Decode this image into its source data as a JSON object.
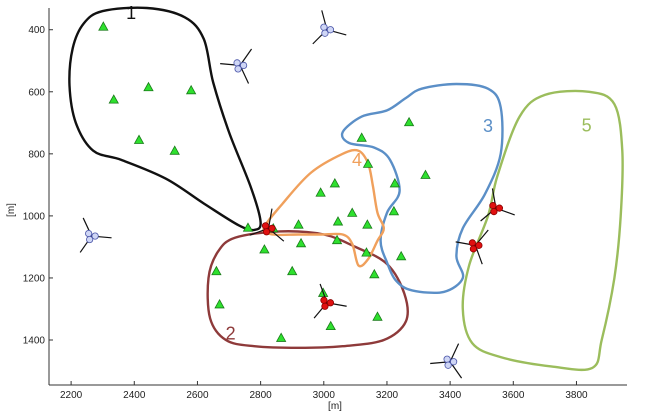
{
  "chart_data": {
    "type": "scatter",
    "title": "",
    "xlabel": "[m]",
    "ylabel": "[m]",
    "xlim": [
      2130,
      3960
    ],
    "ylim": [
      1545,
      330
    ],
    "y_inverted": true,
    "grid": false,
    "x_ticks": [
      2200,
      2400,
      2600,
      2800,
      3000,
      3200,
      3400,
      3600,
      3800
    ],
    "y_ticks": [
      400,
      600,
      800,
      1000,
      1200,
      1400
    ],
    "x_tick_labels": [
      "2200",
      "2400",
      "2600",
      "2800",
      "3000",
      "3200",
      "3400",
      "3600",
      "3800"
    ],
    "y_tick_labels": [
      "400",
      "600",
      "800",
      "1000",
      "1200",
      "1400"
    ],
    "sensors": [
      {
        "x": 2302,
        "y": 390
      },
      {
        "x": 2335,
        "y": 625
      },
      {
        "x": 2445,
        "y": 585
      },
      {
        "x": 2580,
        "y": 595
      },
      {
        "x": 2415,
        "y": 755
      },
      {
        "x": 2528,
        "y": 790
      },
      {
        "x": 2760,
        "y": 1038
      },
      {
        "x": 2812,
        "y": 1108
      },
      {
        "x": 2840,
        "y": 1040
      },
      {
        "x": 2920,
        "y": 1028
      },
      {
        "x": 2990,
        "y": 925
      },
      {
        "x": 3035,
        "y": 895
      },
      {
        "x": 3045,
        "y": 1018
      },
      {
        "x": 3042,
        "y": 1078
      },
      {
        "x": 3090,
        "y": 990
      },
      {
        "x": 3120,
        "y": 748
      },
      {
        "x": 3140,
        "y": 832
      },
      {
        "x": 3138,
        "y": 1028
      },
      {
        "x": 3135,
        "y": 1118
      },
      {
        "x": 3160,
        "y": 1188
      },
      {
        "x": 3225,
        "y": 895
      },
      {
        "x": 3222,
        "y": 985
      },
      {
        "x": 3270,
        "y": 698
      },
      {
        "x": 3245,
        "y": 1130
      },
      {
        "x": 3322,
        "y": 868
      },
      {
        "x": 2660,
        "y": 1178
      },
      {
        "x": 2670,
        "y": 1285
      },
      {
        "x": 2900,
        "y": 1178
      },
      {
        "x": 2928,
        "y": 1088
      },
      {
        "x": 2998,
        "y": 1248
      },
      {
        "x": 3022,
        "y": 1355
      },
      {
        "x": 2865,
        "y": 1393
      },
      {
        "x": 3170,
        "y": 1325
      }
    ],
    "wind_turbines": [
      {
        "x": 3010,
        "y": 400,
        "active": false,
        "blade_angle": 15
      },
      {
        "x": 2735,
        "y": 515,
        "active": false,
        "blade_angle": 65
      },
      {
        "x": 2265,
        "y": 1065,
        "active": false,
        "blade_angle": 5
      },
      {
        "x": 3400,
        "y": 1470,
        "active": false,
        "blade_angle": 55
      },
      {
        "x": 2825,
        "y": 1040,
        "active": true,
        "blade_angle": 40
      },
      {
        "x": 3010,
        "y": 1280,
        "active": true,
        "blade_angle": 10
      },
      {
        "x": 3545,
        "y": 975,
        "active": true,
        "blade_angle": 20
      },
      {
        "x": 3480,
        "y": 1095,
        "active": true,
        "blade_angle": 70
      }
    ],
    "clusters": [
      {
        "label": "1",
        "color": "#111111",
        "label_at": [
          2390,
          365
        ],
        "boundary": [
          [
            2240,
            380
          ],
          [
            2300,
            340
          ],
          [
            2440,
            330
          ],
          [
            2560,
            360
          ],
          [
            2620,
            430
          ],
          [
            2650,
            570
          ],
          [
            2700,
            730
          ],
          [
            2770,
            910
          ],
          [
            2800,
            1020
          ],
          [
            2780,
            1045
          ],
          [
            2730,
            1030
          ],
          [
            2620,
            960
          ],
          [
            2500,
            880
          ],
          [
            2360,
            820
          ],
          [
            2270,
            790
          ],
          [
            2215,
            700
          ],
          [
            2195,
            580
          ],
          [
            2205,
            460
          ]
        ]
      },
      {
        "label": "2",
        "color": "#8e3a3a",
        "label_at": [
          2705,
          1398
        ],
        "boundary": [
          [
            2720,
            1070
          ],
          [
            2860,
            1050
          ],
          [
            3000,
            1060
          ],
          [
            3100,
            1100
          ],
          [
            3200,
            1155
          ],
          [
            3255,
            1250
          ],
          [
            3260,
            1340
          ],
          [
            3190,
            1400
          ],
          [
            3060,
            1420
          ],
          [
            2920,
            1425
          ],
          [
            2780,
            1420
          ],
          [
            2690,
            1400
          ],
          [
            2640,
            1330
          ],
          [
            2635,
            1200
          ],
          [
            2665,
            1115
          ]
        ]
      },
      {
        "label": "3",
        "color": "#5b8fc7",
        "label_at": [
          3520,
          730
        ],
        "boundary": [
          [
            3060,
            730
          ],
          [
            3120,
            680
          ],
          [
            3200,
            660
          ],
          [
            3260,
            620
          ],
          [
            3310,
            590
          ],
          [
            3420,
            575
          ],
          [
            3520,
            590
          ],
          [
            3560,
            650
          ],
          [
            3560,
            800
          ],
          [
            3510,
            930
          ],
          [
            3440,
            1040
          ],
          [
            3420,
            1130
          ],
          [
            3440,
            1200
          ],
          [
            3380,
            1245
          ],
          [
            3280,
            1240
          ],
          [
            3230,
            1210
          ],
          [
            3200,
            1150
          ],
          [
            3180,
            1080
          ],
          [
            3200,
            990
          ],
          [
            3240,
            920
          ],
          [
            3210,
            820
          ],
          [
            3160,
            780
          ],
          [
            3080,
            765
          ]
        ]
      },
      {
        "label": "4",
        "color": "#f0a05c",
        "label_at": [
          3105,
          840
        ],
        "boundary": [
          [
            2810,
            1040
          ],
          [
            2870,
            960
          ],
          [
            2960,
            860
          ],
          [
            3060,
            800
          ],
          [
            3110,
            790
          ],
          [
            3140,
            830
          ],
          [
            3155,
            900
          ],
          [
            3170,
            990
          ],
          [
            3190,
            1040
          ],
          [
            3170,
            1080
          ],
          [
            3140,
            1140
          ],
          [
            3110,
            1160
          ],
          [
            3090,
            1090
          ],
          [
            3060,
            1060
          ],
          [
            2990,
            1060
          ],
          [
            2920,
            1060
          ],
          [
            2840,
            1060
          ]
        ]
      },
      {
        "label": "5",
        "color": "#9bbd5c",
        "label_at": [
          3832,
          728
        ],
        "boundary": [
          [
            3620,
            680
          ],
          [
            3700,
            610
          ],
          [
            3840,
            600
          ],
          [
            3920,
            640
          ],
          [
            3945,
            790
          ],
          [
            3940,
            1000
          ],
          [
            3920,
            1200
          ],
          [
            3880,
            1400
          ],
          [
            3850,
            1490
          ],
          [
            3720,
            1485
          ],
          [
            3560,
            1455
          ],
          [
            3470,
            1410
          ],
          [
            3440,
            1300
          ],
          [
            3460,
            1160
          ],
          [
            3520,
            1000
          ],
          [
            3550,
            870
          ]
        ]
      }
    ]
  }
}
